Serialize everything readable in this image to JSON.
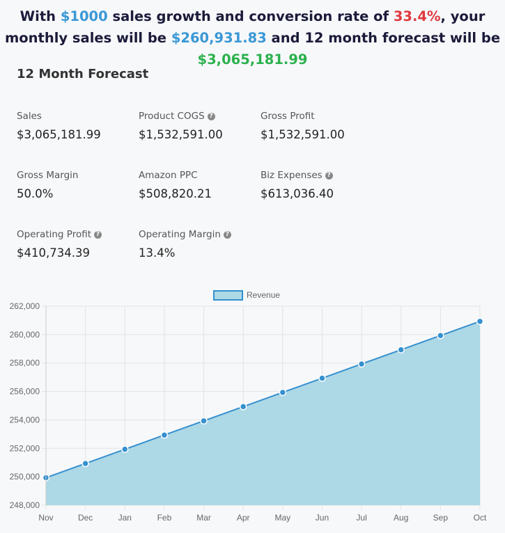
{
  "headline": {
    "p1": "With ",
    "growth": "$1000",
    "p2": " sales growth and conversion rate of ",
    "rate": "33.4%",
    "p3": ", your monthly sales will be ",
    "monthly": "$260,931.83",
    "p4": " and 12 month forecast will be ",
    "forecast": "$3,065,181.99"
  },
  "section_title": "12 Month Forecast",
  "metrics": [
    {
      "label": "Sales",
      "value": "$3,065,181.99",
      "help": false
    },
    {
      "label": "Product COGS",
      "value": "$1,532,591.00",
      "help": true
    },
    {
      "label": "Gross Profit",
      "value": "$1,532,591.00",
      "help": false
    },
    {
      "label": "Gross Margin",
      "value": "50.0%",
      "help": false
    },
    {
      "label": "Amazon PPC",
      "value": "$508,820.21",
      "help": false
    },
    {
      "label": "Biz Expenses",
      "value": "$613,036.40",
      "help": true
    },
    {
      "label": "Operating Profit",
      "value": "$410,734.39",
      "help": true
    },
    {
      "label": "Operating Margin",
      "value": "13.4%",
      "help": true
    }
  ],
  "help_glyph": "?",
  "colors": {
    "blue": "#3a98d6",
    "red": "#e0393e",
    "green": "#2bb14d",
    "fill": "#add8e6",
    "line": "#3590cf"
  },
  "chart_data": {
    "type": "area",
    "legend": "Revenue",
    "legend_position": "top-center",
    "grid": true,
    "categories": [
      "Nov",
      "Dec",
      "Jan",
      "Feb",
      "Mar",
      "Apr",
      "May",
      "Jun",
      "Jul",
      "Aug",
      "Sep",
      "Oct"
    ],
    "series": [
      {
        "name": "Revenue",
        "values": [
          249932,
          250932,
          251932,
          252932,
          253932,
          254932,
          255932,
          256932,
          257932,
          258932,
          259932,
          260932
        ]
      }
    ],
    "y_ticks": [
      "248,000",
      "250,000",
      "252,000",
      "254,000",
      "256,000",
      "258,000",
      "260,000",
      "262,000"
    ],
    "ylim": [
      248000,
      262000
    ]
  }
}
